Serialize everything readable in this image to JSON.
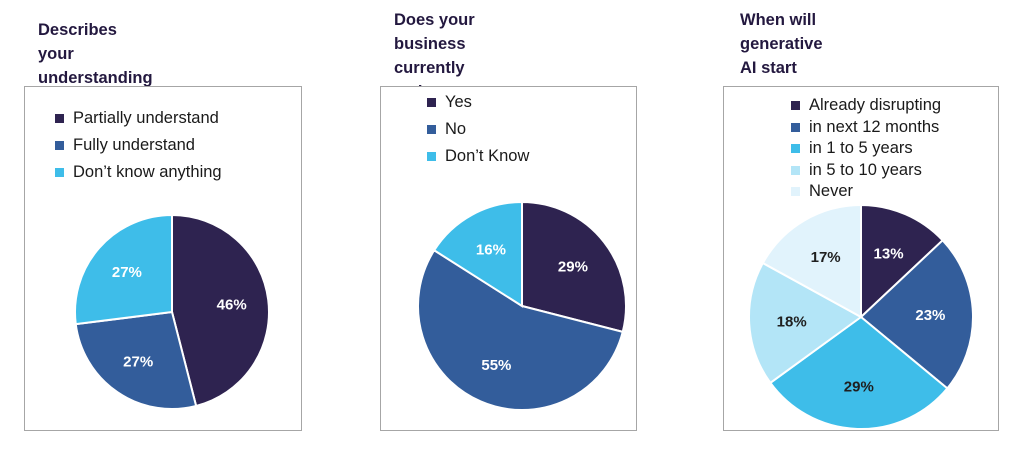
{
  "chart_data": [
    {
      "type": "pie",
      "title": "Describes your understanding\nof GenAI",
      "categories": [
        "Partially understand",
        "Fully understand",
        "Don’t know anything"
      ],
      "values": [
        46,
        27,
        27
      ],
      "value_labels": [
        "46%",
        "27%",
        "27%"
      ],
      "colors": [
        "#2e2350",
        "#335d9b",
        "#3ebde9"
      ],
      "label_colors": [
        "#ffffff",
        "#ffffff",
        "#ffffff"
      ],
      "legend_position": "top"
    },
    {
      "type": "pie",
      "title": "Does your business currently\nmake use of generative AI\ntools like ChatGPT",
      "categories": [
        "Yes",
        "No",
        "Don’t Know"
      ],
      "values": [
        29,
        55,
        16
      ],
      "value_labels": [
        "29%",
        "55%",
        "16%"
      ],
      "colors": [
        "#2e2350",
        "#335d9b",
        "#3ebde9"
      ],
      "label_colors": [
        "#ffffff",
        "#ffffff",
        "#ffffff"
      ],
      "legend_position": "top"
    },
    {
      "type": "pie",
      "title": "When will generative AI start\nto tangibly disrupt your\nindustry?",
      "categories": [
        "Already disrupting",
        "in next 12 months",
        "in 1 to 5 years",
        "in 5 to 10 years",
        "Never"
      ],
      "values": [
        13,
        23,
        29,
        18,
        17
      ],
      "value_labels": [
        "13%",
        "23%",
        "29%",
        "18%",
        "17%"
      ],
      "colors": [
        "#2e2350",
        "#335d9b",
        "#3ebde9",
        "#b3e5f7",
        "#e1f3fc"
      ],
      "label_colors": [
        "#ffffff",
        "#ffffff",
        "#1f1f1f",
        "#1f1f1f",
        "#1f1f1f"
      ],
      "legend_position": "top"
    }
  ]
}
